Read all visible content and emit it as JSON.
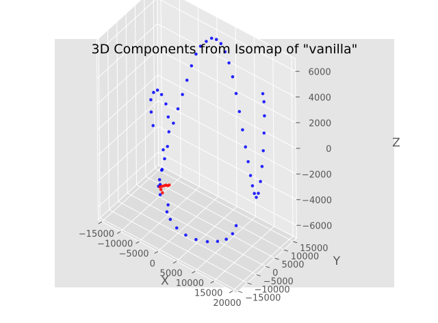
{
  "chart_data": {
    "type": "scatter",
    "title": "3D Components from Isomap of \"vanilla\"",
    "xlabel": "X",
    "ylabel": "Y",
    "zlabel": "Z",
    "xlim": [
      -16000,
      21000
    ],
    "ylim": [
      -16000,
      17000
    ],
    "zlim": [
      -7000,
      7000
    ],
    "grid": true,
    "xticks": [
      -15000,
      -10000,
      -5000,
      0,
      5000,
      10000,
      15000,
      20000
    ],
    "yticks": [
      -15000,
      -10000,
      -5000,
      0,
      5000,
      10000,
      15000
    ],
    "zticks": [
      -6000,
      -4000,
      -2000,
      0,
      2000,
      4000,
      6000
    ],
    "xtick_labels": [
      "−15000",
      "−10000",
      "−5000",
      "0",
      "5000",
      "10000",
      "15000",
      "20000"
    ],
    "ytick_labels": [
      "−15000",
      "−10000",
      "−5000",
      "0",
      "5000",
      "10000",
      "15000"
    ],
    "ztick_labels": [
      "−6000",
      "−4000",
      "−2000",
      "0",
      "2000",
      "4000",
      "6000"
    ],
    "series": [
      {
        "color": "#0000ff",
        "points": [
          [
            -4500,
            -9000,
            1200
          ],
          [
            -5200,
            -8600,
            2100
          ],
          [
            -5600,
            -7900,
            2900
          ],
          [
            -5300,
            -7000,
            3400
          ],
          [
            -4600,
            -6300,
            3600
          ],
          [
            -3800,
            -5700,
            3300
          ],
          [
            -3000,
            -5000,
            2600
          ],
          [
            -2600,
            -4600,
            1600
          ],
          [
            -2600,
            -4300,
            400
          ],
          [
            -3000,
            -4300,
            -800
          ],
          [
            -3600,
            -4700,
            -1800
          ],
          [
            -4100,
            -5300,
            -2700
          ],
          [
            -4400,
            -5900,
            -3400
          ],
          [
            -4300,
            -6700,
            -3800
          ],
          [
            -1500,
            -11500,
            -3400
          ],
          [
            -1000,
            -12500,
            -2400
          ],
          [
            -600,
            -12200,
            -1200
          ],
          [
            -700,
            -11300,
            200
          ],
          [
            -200,
            -9900,
            -4200
          ],
          [
            900,
            -12800,
            -4200
          ],
          [
            2400,
            -14000,
            -4400
          ],
          [
            4600,
            -15000,
            -4600
          ],
          [
            7200,
            -15400,
            -4700
          ],
          [
            10000,
            -15500,
            -4600
          ],
          [
            12800,
            -15000,
            -4400
          ],
          [
            15200,
            -14300,
            -4100
          ],
          [
            17000,
            -13200,
            -3800
          ],
          [
            18000,
            -11800,
            -3400
          ],
          [
            18300,
            -10400,
            -2900
          ],
          [
            -2000,
            -3000,
            1000
          ],
          [
            -1500,
            -1500,
            2000
          ],
          [
            -1000,
            0,
            3000
          ],
          [
            -500,
            1500,
            4000
          ],
          [
            0,
            3000,
            5000
          ],
          [
            500,
            4500,
            5800
          ],
          [
            1000,
            6000,
            6300
          ],
          [
            1800,
            7500,
            6600
          ],
          [
            2600,
            8800,
            6800
          ],
          [
            3400,
            9800,
            6700
          ],
          [
            4200,
            10600,
            6400
          ],
          [
            5000,
            11200,
            5800
          ],
          [
            5800,
            11700,
            5000
          ],
          [
            6600,
            12000,
            4000
          ],
          [
            7400,
            12200,
            2800
          ],
          [
            8200,
            12300,
            1500
          ],
          [
            9000,
            12300,
            200
          ],
          [
            9800,
            12200,
            -1000
          ],
          [
            10600,
            12000,
            -2000
          ],
          [
            11400,
            11600,
            -2900
          ],
          [
            12200,
            11000,
            -3500
          ],
          [
            13000,
            10400,
            -3900
          ],
          [
            13800,
            9800,
            -4000
          ],
          [
            14600,
            9300,
            -3500
          ],
          [
            15400,
            8900,
            -2400
          ],
          [
            16000,
            8600,
            -1100
          ],
          [
            16400,
            8500,
            200
          ],
          [
            16600,
            8600,
            1600
          ],
          [
            16600,
            8900,
            2900
          ],
          [
            16300,
            9300,
            3900
          ],
          [
            15800,
            9700,
            4400
          ]
        ]
      },
      {
        "color": "#ff0000",
        "points": [
          [
            -4200,
            -6200,
            -3900
          ],
          [
            -3700,
            -6000,
            -3800
          ],
          [
            -3200,
            -5800,
            -3700
          ],
          [
            -2800,
            -5700,
            -3600
          ],
          [
            -2400,
            -5600,
            -3600
          ],
          [
            -2000,
            -5500,
            -3500
          ],
          [
            -3400,
            -6400,
            -4200
          ],
          [
            -4000,
            -6000,
            -4100
          ]
        ]
      }
    ]
  }
}
